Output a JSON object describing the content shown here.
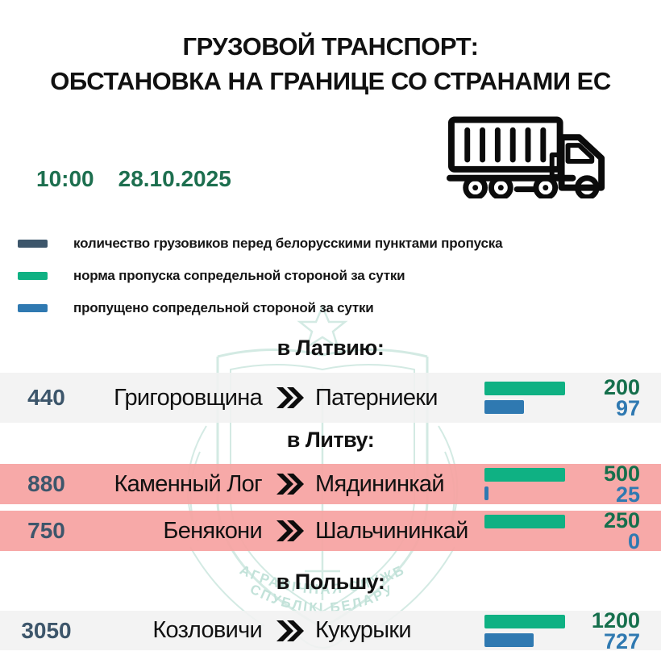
{
  "title": {
    "line1": "ГРУЗОВОЙ ТРАНСПОРТ:",
    "line2": "ОБСТАНОВКА НА ГРАНИЦЕ СО СТРАНАМИ ЕС"
  },
  "meta": {
    "time": "10:00",
    "date": "28.10.2025"
  },
  "legend": {
    "items": [
      {
        "color": "#3d566b",
        "label": "количество грузовиков перед белорусскими пунктами пропуска"
      },
      {
        "color": "#0fb183",
        "label": "норма пропуска сопредельной стороной за сутки"
      },
      {
        "color": "#2f79b1",
        "label": "пропущено сопредельной стороной за сутки"
      }
    ]
  },
  "watermark": {
    "arc_line1": "ПАГРАНІЧНАЯ СЛУЖБА",
    "arc_line2": "РЭСПУБЛІКІ БЕЛАРУСЬ",
    "color": "#cfe8e1"
  },
  "colors": {
    "queue_text": "#3d566b",
    "norm_bar": "#0fb183",
    "norm_text": "#156f4c",
    "passed_bar": "#2f79b1",
    "passed_text": "#2f79b1",
    "datetime_text": "#1d6f4f",
    "row_gray": "#f1f1f1",
    "row_pink": "#f6a3a1"
  },
  "chart_data": {
    "type": "bar",
    "note": "queue = trucks waiting before Belarusian checkpoints; norm = daily pass quota by adjacent side; passed = let through by adjacent side per day; bar width of 'passed' is proportional to passed/norm",
    "sections": [
      {
        "heading": "в Латвию:",
        "rows": [
          {
            "queue": 440,
            "from": "Григоровщина",
            "to": "Патерниеки",
            "norm": 200,
            "passed": 97,
            "highlight": false
          }
        ]
      },
      {
        "heading": "в Литву:",
        "rows": [
          {
            "queue": 880,
            "from": "Каменный Лог",
            "to": "Мядининкай",
            "norm": 500,
            "passed": 25,
            "highlight": true
          },
          {
            "queue": 750,
            "from": "Бенякони",
            "to": "Шальчининкай",
            "norm": 250,
            "passed": 0,
            "highlight": true
          }
        ]
      },
      {
        "heading": "в Польшу:",
        "rows": [
          {
            "queue": 3050,
            "from": "Козловичи",
            "to": "Кукурыки",
            "norm": 1200,
            "passed": 727,
            "highlight": false
          }
        ]
      }
    ]
  }
}
